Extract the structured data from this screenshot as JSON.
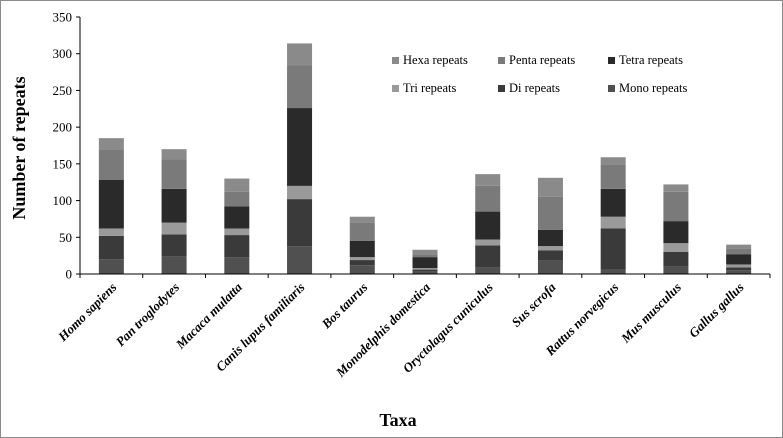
{
  "chart_data": {
    "type": "bar",
    "stacked": true,
    "xlabel": "Taxa",
    "ylabel": "Number of repeats",
    "ylim": [
      0,
      350
    ],
    "yticks": [
      0,
      50,
      100,
      150,
      200,
      250,
      300,
      350
    ],
    "grid": false,
    "legend_position": "top-right",
    "categories": [
      "Homo sapiens",
      "Pan troglodytes",
      "Macaca mulatta",
      "Canis lupus familiaris",
      "Bos taurus",
      "Monodelphis domestica",
      "Oryctolagus cuniculus",
      "Sus scrofa",
      "Rattus norvegicus",
      "Mus musculus",
      "Gallus gallus"
    ],
    "series": [
      {
        "name": "Mono repeats",
        "color": "#505050",
        "values": [
          20,
          24,
          23,
          38,
          12,
          3,
          9,
          18,
          6,
          10,
          5
        ]
      },
      {
        "name": "Di repeats",
        "color": "#3a3a3a",
        "values": [
          32,
          30,
          30,
          64,
          7,
          3,
          30,
          14,
          56,
          20,
          4
        ]
      },
      {
        "name": "Tri repeats",
        "color": "#9a9a9a",
        "values": [
          10,
          16,
          9,
          18,
          4,
          2,
          8,
          6,
          16,
          12,
          4
        ]
      },
      {
        "name": "Tetra repeats",
        "color": "#2a2a2a",
        "values": [
          66,
          46,
          30,
          106,
          22,
          15,
          38,
          22,
          38,
          30,
          14
        ]
      },
      {
        "name": "Penta repeats",
        "color": "#7a7a7a",
        "values": [
          42,
          40,
          20,
          58,
          25,
          4,
          35,
          45,
          33,
          40,
          8
        ]
      },
      {
        "name": "Hexa repeats",
        "color": "#8a8a8a",
        "values": [
          15,
          14,
          18,
          30,
          8,
          6,
          16,
          26,
          10,
          10,
          5
        ]
      }
    ],
    "legend_order": [
      "Hexa repeats",
      "Penta repeats",
      "Tetra repeats",
      "Tri repeats",
      "Di repeats",
      "Mono repeats"
    ]
  }
}
